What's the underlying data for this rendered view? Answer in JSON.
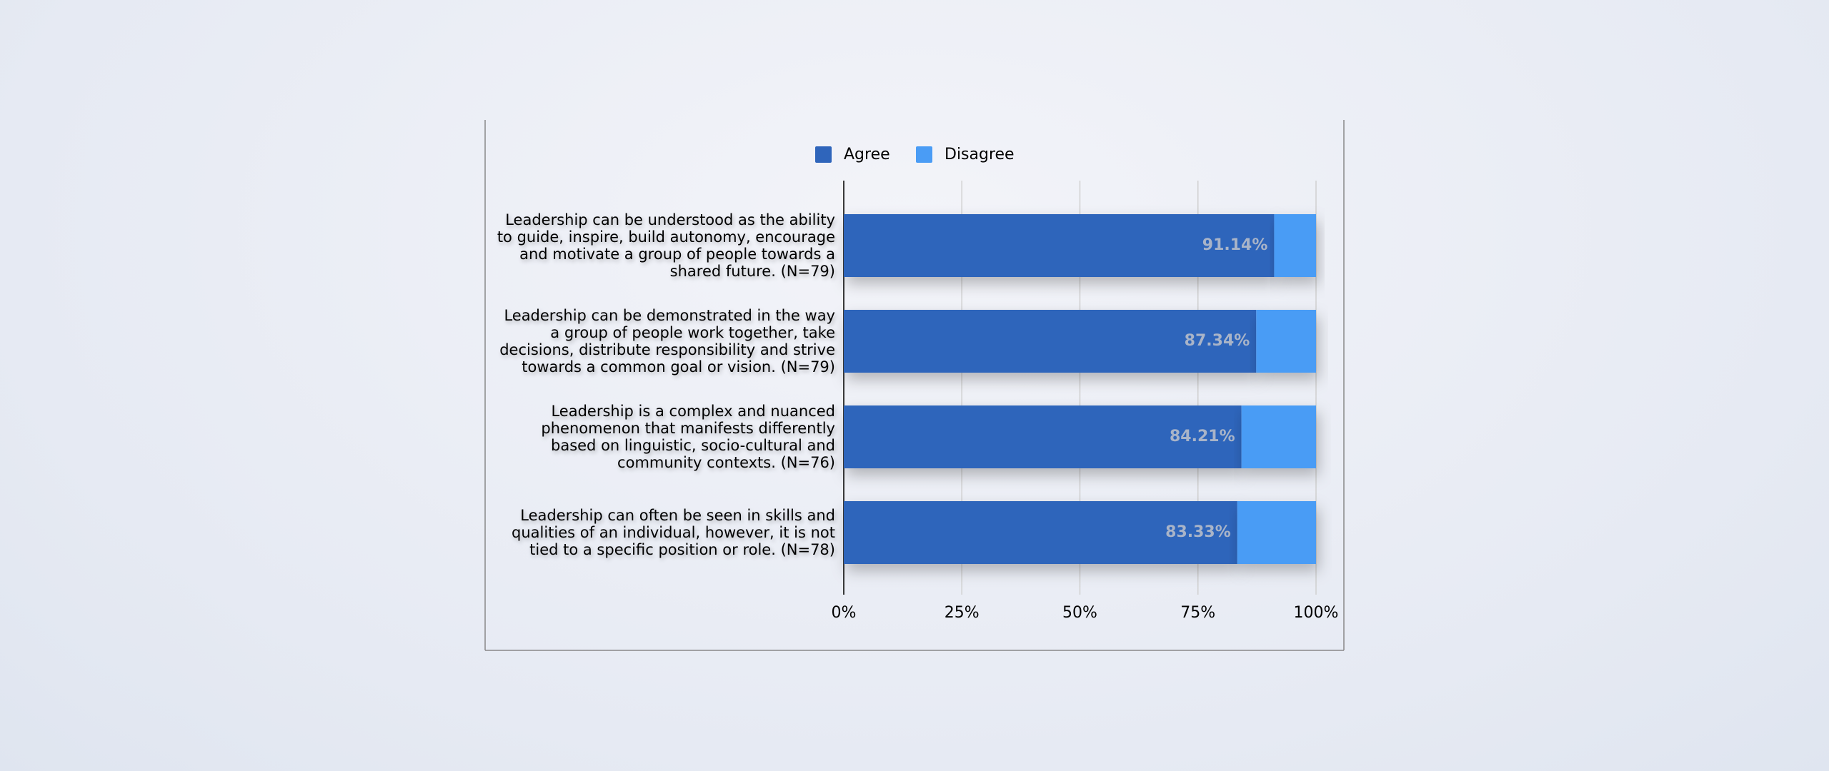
{
  "chart_data": {
    "type": "stacked-barh",
    "categories": [
      "Leadership can be understood as the ability to guide, inspire, build autonomy, encourage and motivate a group of people towards a shared future. (N=79)",
      "Leadership can be demonstrated in the way a group of people work together, take decisions, distribute responsibility and strive towards a common goal or vision. (N=79)",
      "Leadership is a complex and nuanced phenomenon that manifests differently based on linguistic, socio-cultural and community contexts. (N=76)",
      "Leadership can often be seen in skills and qualities of an individual, however, it is not tied to a specific position or role. (N=78)"
    ],
    "series": [
      {
        "name": "Agree",
        "color": "#2f65bb",
        "values": [
          91.14,
          87.34,
          84.21,
          83.33
        ],
        "value_labels": [
          "91.14%",
          "87.34%",
          "84.21%",
          "83.33%"
        ]
      },
      {
        "name": "Disagree",
        "color": "#4a9cf5",
        "values": [
          8.86,
          12.66,
          15.79,
          16.67
        ]
      }
    ],
    "xlim": [
      0,
      100
    ],
    "xticks": [
      {
        "value": 0,
        "label": "0%"
      },
      {
        "value": 25,
        "label": "25%"
      },
      {
        "value": 50,
        "label": "50%"
      },
      {
        "value": 75,
        "label": "75%"
      },
      {
        "value": 100,
        "label": "100%"
      }
    ],
    "grid": true,
    "legend": "top"
  }
}
